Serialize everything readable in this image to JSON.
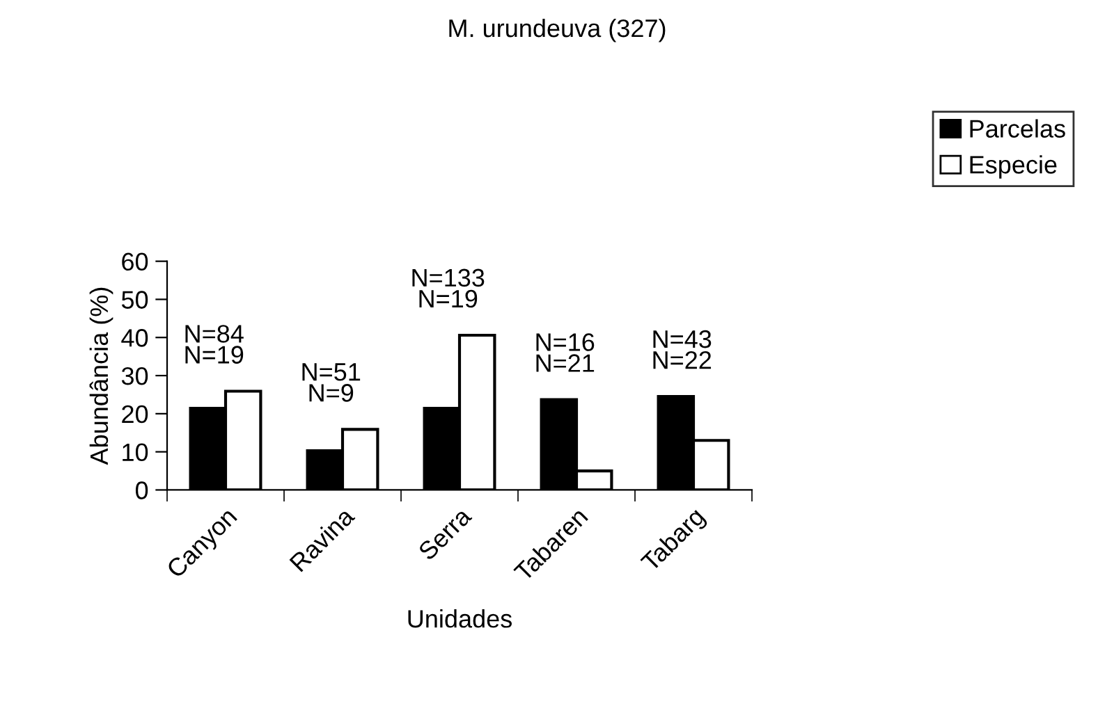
{
  "chart_data": {
    "type": "bar",
    "title": "M. urundeuva (327)",
    "xlabel": "Unidades",
    "ylabel": "Abundância (%)",
    "categories": [
      "Canyon",
      "Ravina",
      "Serra",
      "Tabaren",
      "Tabarg"
    ],
    "series": [
      {
        "name": "Parcelas",
        "color": "#000000",
        "values": [
          21.4,
          10.3,
          21.4,
          23.7,
          24.5
        ]
      },
      {
        "name": "Especie",
        "color": "#ffffff",
        "values": [
          25.9,
          15.9,
          40.6,
          5.0,
          13.0
        ]
      }
    ],
    "ylim": [
      0,
      60
    ],
    "yticks": [
      0,
      10,
      20,
      30,
      40,
      50,
      60
    ],
    "grid": false,
    "legend": "top right",
    "annotations": [
      "N=84",
      "N=19",
      "N=51",
      "N=9",
      "N=133",
      "N=19",
      "N=16",
      "N=21",
      "N=43",
      "N=22"
    ]
  }
}
